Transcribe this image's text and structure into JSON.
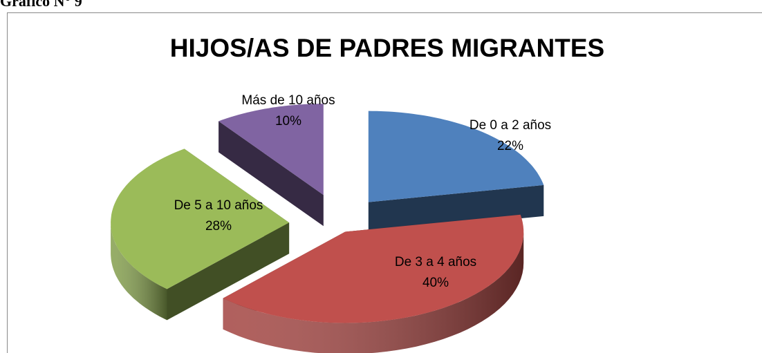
{
  "caption": "Gráfico N° 9",
  "chart_data": {
    "type": "pie",
    "title": "HIJOS/AS  DE PADRES MIGRANTES",
    "categories": [
      "De 0 a 2 años",
      "De 3 a 4 años",
      "De 5 a 10 años",
      "Más de 10 años"
    ],
    "values": [
      22,
      40,
      28,
      10
    ],
    "value_labels": [
      "22%",
      "40%",
      "28%",
      "10%"
    ],
    "colors": [
      "#4f81bd",
      "#c0504d",
      "#9bbb59",
      "#8064a2"
    ]
  }
}
